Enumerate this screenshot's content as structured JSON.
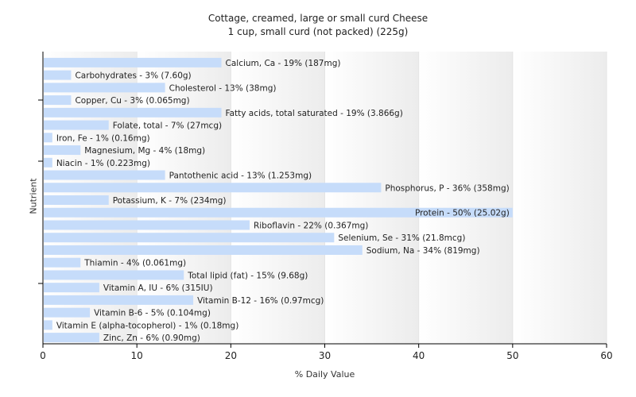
{
  "chart_data": {
    "type": "bar",
    "orientation": "horizontal",
    "title": "Cottage, creamed, large or small curd Cheese",
    "subtitle": "1 cup, small curd (not packed) (225g)",
    "xlabel": "% Daily Value",
    "ylabel": "Nutrient",
    "xlim": [
      0,
      60
    ],
    "xticks": [
      0,
      10,
      20,
      30,
      40,
      50,
      60
    ],
    "grid": true,
    "colors": {
      "bar": "#c6dcfa",
      "axis": "#000000",
      "band_dark": "#ececec",
      "band_light": "#ffffff"
    },
    "categories": [
      "Calcium, Ca",
      "Carbohydrates",
      "Cholesterol",
      "Copper, Cu",
      "Fatty acids, total saturated",
      "Folate, total",
      "Iron, Fe",
      "Magnesium, Mg",
      "Niacin",
      "Pantothenic acid",
      "Phosphorus, P",
      "Potassium, K",
      "Protein",
      "Riboflavin",
      "Selenium, Se",
      "Sodium, Na",
      "Thiamin",
      "Total lipid (fat)",
      "Vitamin A, IU",
      "Vitamin B-12",
      "Vitamin B-6",
      "Vitamin E (alpha-tocopherol)",
      "Zinc, Zn"
    ],
    "values": [
      19,
      3,
      13,
      3,
      19,
      7,
      1,
      4,
      1,
      13,
      36,
      7,
      50,
      22,
      31,
      34,
      4,
      15,
      6,
      16,
      5,
      1,
      6
    ],
    "labels": [
      "Calcium, Ca - 19% (187mg)",
      "Carbohydrates - 3% (7.60g)",
      "Cholesterol - 13% (38mg)",
      "Copper, Cu - 3% (0.065mg)",
      "Fatty acids, total saturated - 19% (3.866g)",
      "Folate, total - 7% (27mcg)",
      "Iron, Fe - 1% (0.16mg)",
      "Magnesium, Mg - 4% (18mg)",
      "Niacin - 1% (0.223mg)",
      "Pantothenic acid - 13% (1.253mg)",
      "Phosphorus, P - 36% (358mg)",
      "Potassium, K - 7% (234mg)",
      "Protein - 50% (25.02g)",
      "Riboflavin - 22% (0.367mg)",
      "Selenium, Se - 31% (21.8mcg)",
      "Sodium, Na - 34% (819mg)",
      "Thiamin - 4% (0.061mg)",
      "Total lipid (fat) - 15% (9.68g)",
      "Vitamin A, IU - 6% (315IU)",
      "Vitamin B-12 - 16% (0.97mcg)",
      "Vitamin B-6 - 5% (0.104mg)",
      "Vitamin E (alpha-tocopherol) - 1% (0.18mg)",
      "Zinc, Zn - 6% (0.90mg)"
    ]
  }
}
